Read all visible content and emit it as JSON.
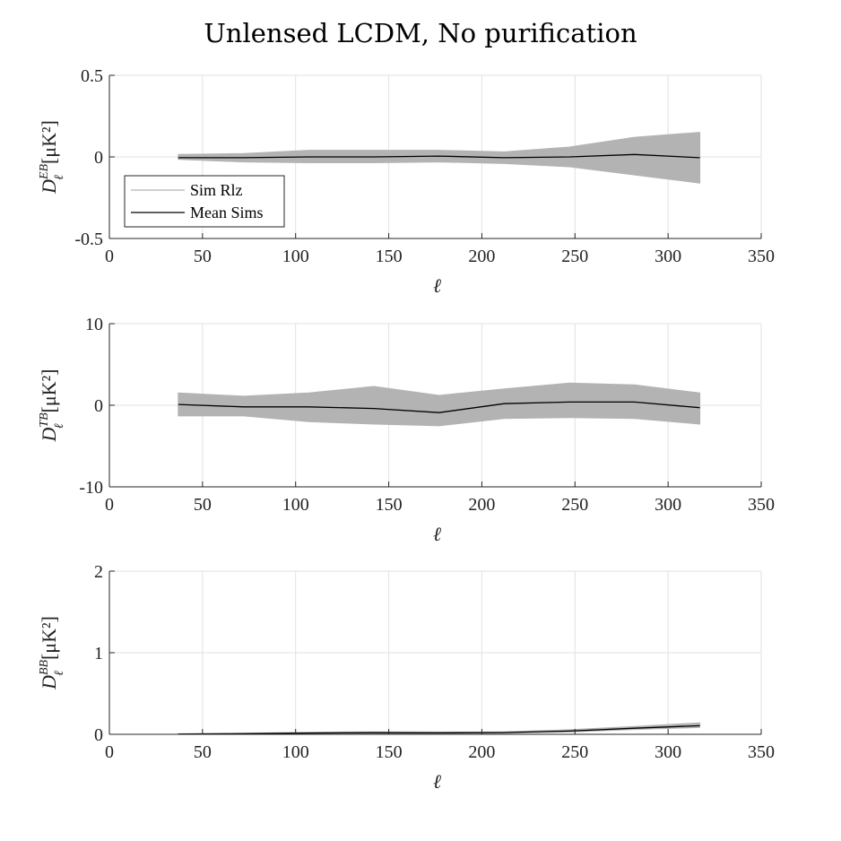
{
  "figure": {
    "title": "Unlensed LCDM, No purification"
  },
  "chart_data": [
    {
      "type": "line",
      "panel": "EB",
      "ylabel": {
        "base": "D",
        "sup": "EB",
        "sub": "ℓ",
        "units": "[μK²]"
      },
      "xlabel": "ℓ",
      "xlim": [
        0,
        350
      ],
      "ylim": [
        -0.5,
        0.5
      ],
      "xticks": [
        0,
        50,
        100,
        150,
        200,
        250,
        300,
        350
      ],
      "xtick_labels": [
        "0",
        "50",
        "100",
        "150",
        "200",
        "250",
        "300",
        "350"
      ],
      "yticks": [
        -0.5,
        0,
        0.5
      ],
      "ytick_labels": [
        "-0.5",
        "0",
        "0.5"
      ],
      "grid": true,
      "legend": {
        "placement": "lower-left",
        "entries": [
          "Sim Rlz",
          "Mean Sims"
        ]
      },
      "x": [
        37,
        72,
        107,
        142,
        177,
        212,
        247,
        282,
        317
      ],
      "series": [
        {
          "name": "Sim Rlz",
          "kind": "band",
          "upper": [
            0.015,
            0.02,
            0.04,
            0.04,
            0.04,
            0.03,
            0.06,
            0.12,
            0.15
          ],
          "lower": [
            -0.015,
            -0.03,
            -0.035,
            -0.035,
            -0.03,
            -0.04,
            -0.06,
            -0.11,
            -0.16
          ],
          "color": "#b3b3b3"
        },
        {
          "name": "Mean Sims",
          "values": [
            -0.005,
            -0.005,
            0.0,
            0.0,
            0.005,
            -0.005,
            0.0,
            0.015,
            -0.005
          ],
          "color": "#000000"
        }
      ]
    },
    {
      "type": "line",
      "panel": "TB",
      "ylabel": {
        "base": "D",
        "sup": "TB",
        "sub": "ℓ",
        "units": "[μK²]"
      },
      "xlabel": "ℓ",
      "xlim": [
        0,
        350
      ],
      "ylim": [
        -10,
        10
      ],
      "xticks": [
        0,
        50,
        100,
        150,
        200,
        250,
        300,
        350
      ],
      "xtick_labels": [
        "0",
        "50",
        "100",
        "150",
        "200",
        "250",
        "300",
        "350"
      ],
      "yticks": [
        -10,
        0,
        10
      ],
      "ytick_labels": [
        "-10",
        "0",
        "10"
      ],
      "grid": true,
      "x": [
        37,
        72,
        107,
        142,
        177,
        212,
        247,
        282,
        317
      ],
      "series": [
        {
          "name": "Sim Rlz",
          "kind": "band",
          "upper": [
            1.5,
            1.1,
            1.5,
            2.3,
            1.2,
            2.0,
            2.7,
            2.5,
            1.5
          ],
          "lower": [
            -1.3,
            -1.3,
            -2.0,
            -2.3,
            -2.5,
            -1.6,
            -1.5,
            -1.6,
            -2.3
          ],
          "color": "#b3b3b3"
        },
        {
          "name": "Mean Sims",
          "values": [
            0.1,
            -0.2,
            -0.2,
            -0.4,
            -0.9,
            0.2,
            0.4,
            0.4,
            -0.3
          ],
          "color": "#000000"
        }
      ]
    },
    {
      "type": "line",
      "panel": "BB",
      "ylabel": {
        "base": "D",
        "sup": "BB",
        "sub": "ℓ",
        "units": "[μK²]"
      },
      "xlabel": "ℓ",
      "xlim": [
        0,
        350
      ],
      "ylim": [
        0,
        2
      ],
      "xticks": [
        0,
        50,
        100,
        150,
        200,
        250,
        300,
        350
      ],
      "xtick_labels": [
        "0",
        "50",
        "100",
        "150",
        "200",
        "250",
        "300",
        "350"
      ],
      "yticks": [
        0,
        1,
        2
      ],
      "ytick_labels": [
        "0",
        "1",
        "2"
      ],
      "grid": true,
      "x": [
        37,
        72,
        107,
        142,
        177,
        212,
        247,
        282,
        317
      ],
      "series": [
        {
          "name": "Sim Rlz",
          "kind": "band",
          "upper": [
            0.005,
            0.012,
            0.025,
            0.03,
            0.028,
            0.03,
            0.055,
            0.095,
            0.14
          ],
          "lower": [
            0.0,
            0.004,
            0.008,
            0.012,
            0.012,
            0.015,
            0.03,
            0.06,
            0.085
          ],
          "color": "#b3b3b3"
        },
        {
          "name": "Mean Sims",
          "values": [
            0.002,
            0.008,
            0.015,
            0.02,
            0.018,
            0.022,
            0.04,
            0.075,
            0.105
          ],
          "color": "#000000"
        }
      ]
    }
  ]
}
